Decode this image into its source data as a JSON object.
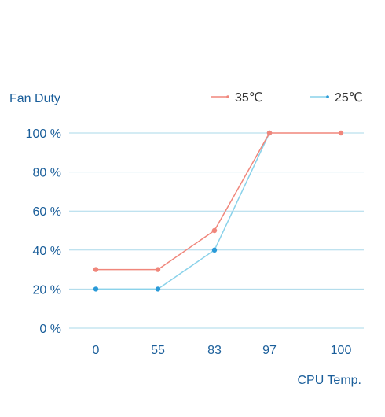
{
  "chart_data": {
    "type": "line",
    "ylabel": "Fan Duty",
    "xlabel": "CPU Temp.",
    "categories": [
      "0",
      "55",
      "83",
      "97",
      "100"
    ],
    "yticks": [
      "0 %",
      "20 %",
      "40 %",
      "60 %",
      "80 %",
      "100 %"
    ],
    "ylim": [
      0,
      100
    ],
    "grid": true,
    "legend_position": "top-right",
    "series": [
      {
        "name": "35℃",
        "color": "#f0867b",
        "values": [
          30,
          30,
          50,
          100,
          100
        ]
      },
      {
        "name": "25℃",
        "color": "#8ad2ea",
        "point_color": "#2a9ad8",
        "values": [
          20,
          20,
          40,
          100,
          null
        ]
      }
    ],
    "colors": {
      "axis_text": "#1a5e9a",
      "grid": "#aad8ea",
      "legend_text": "#333333"
    }
  }
}
